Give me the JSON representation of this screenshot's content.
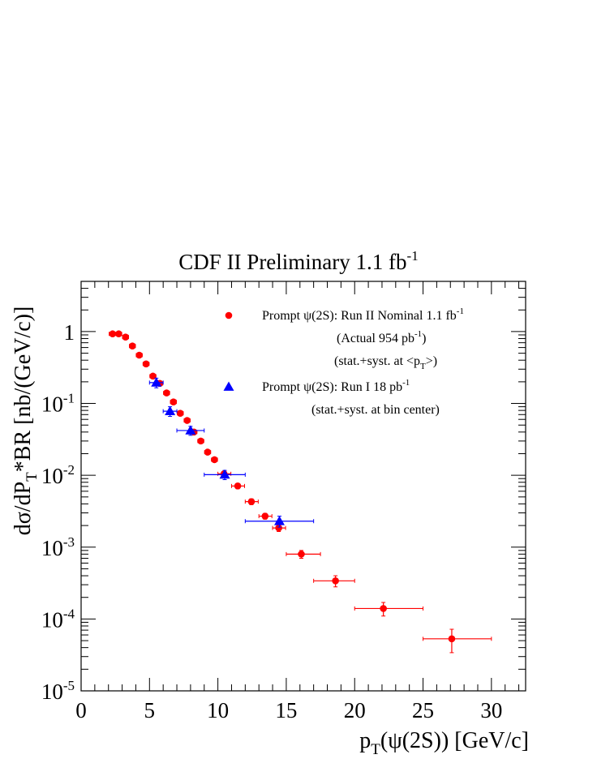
{
  "chart_data": {
    "type": "scatter",
    "title": {
      "main": "CDF II Preliminary 1.1 fb",
      "sup": "-1"
    },
    "xlabel": {
      "parts": [
        "p",
        "T",
        "(ψ(2S)) [GeV/c]"
      ]
    },
    "ylabel": {
      "parts": [
        "dσ/dP",
        "T",
        "*BR [nb/(GeV/c)]"
      ]
    },
    "xlim": [
      0,
      32.5
    ],
    "ylim": [
      1e-05,
      5
    ],
    "yscale": "log",
    "grid": false,
    "x_ticks": [
      0,
      5,
      10,
      15,
      20,
      25,
      30
    ],
    "x_tick_labels": [
      "0",
      "5",
      "10",
      "15",
      "20",
      "25",
      "30"
    ],
    "y_ticks": [
      {
        "value": 1,
        "label": "1",
        "sup": ""
      },
      {
        "value": 0.1,
        "label": "10",
        "sup": "-1"
      },
      {
        "value": 0.01,
        "label": "10",
        "sup": "-2"
      },
      {
        "value": 0.001,
        "label": "10",
        "sup": "-3"
      },
      {
        "value": 0.0001,
        "label": "10",
        "sup": "-4"
      },
      {
        "value": 1e-05,
        "label": "10",
        "sup": "-5"
      }
    ],
    "legend_position": "top-right",
    "series": [
      {
        "name": "Prompt ψ(2S): Run II Nominal 1.1 fb",
        "name_sup": "-1",
        "extra_lines": [
          {
            "text": "(Actual 954 pb",
            "sup": "-1",
            "after": ")"
          },
          {
            "text": "(stat.+syst. at <p",
            "sub": "T",
            "after": ">)"
          }
        ],
        "marker": "circle",
        "color": "#ff0000",
        "points": [
          {
            "x": 2.3,
            "y": 0.93,
            "xerr": [
              0.25,
              0.25
            ],
            "yerr": [
              0.06,
              0.06
            ]
          },
          {
            "x": 2.75,
            "y": 0.93,
            "xerr": [
              0.22,
              0.22
            ],
            "yerr": [
              0.05,
              0.05
            ]
          },
          {
            "x": 3.25,
            "y": 0.84,
            "xerr": [
              0.22,
              0.22
            ],
            "yerr": [
              0.05,
              0.05
            ]
          },
          {
            "x": 3.75,
            "y": 0.63,
            "xerr": [
              0.22,
              0.22
            ],
            "yerr": [
              0.04,
              0.04
            ]
          },
          {
            "x": 4.25,
            "y": 0.47,
            "xerr": [
              0.22,
              0.22
            ],
            "yerr": [
              0.03,
              0.03
            ]
          },
          {
            "x": 4.75,
            "y": 0.355,
            "xerr": [
              0.22,
              0.22
            ],
            "yerr": [
              0.02,
              0.02
            ]
          },
          {
            "x": 5.25,
            "y": 0.24,
            "xerr": [
              0.22,
              0.22
            ],
            "yerr": [
              0.015,
              0.015
            ]
          },
          {
            "x": 5.75,
            "y": 0.19,
            "xerr": [
              0.22,
              0.22
            ],
            "yerr": [
              0.012,
              0.012
            ]
          },
          {
            "x": 6.25,
            "y": 0.14,
            "xerr": [
              0.22,
              0.22
            ],
            "yerr": [
              0.009,
              0.009
            ]
          },
          {
            "x": 6.75,
            "y": 0.105,
            "xerr": [
              0.22,
              0.22
            ],
            "yerr": [
              0.007,
              0.007
            ]
          },
          {
            "x": 7.25,
            "y": 0.073,
            "xerr": [
              0.22,
              0.22
            ],
            "yerr": [
              0.005,
              0.005
            ]
          },
          {
            "x": 7.75,
            "y": 0.058,
            "xerr": [
              0.22,
              0.22
            ],
            "yerr": [
              0.004,
              0.004
            ]
          },
          {
            "x": 8.25,
            "y": 0.04,
            "xerr": [
              0.22,
              0.22
            ],
            "yerr": [
              0.003,
              0.003
            ]
          },
          {
            "x": 8.75,
            "y": 0.03,
            "xerr": [
              0.22,
              0.22
            ],
            "yerr": [
              0.002,
              0.002
            ]
          },
          {
            "x": 9.25,
            "y": 0.021,
            "xerr": [
              0.22,
              0.22
            ],
            "yerr": [
              0.0015,
              0.0015
            ]
          },
          {
            "x": 9.75,
            "y": 0.0165,
            "xerr": [
              0.22,
              0.22
            ],
            "yerr": [
              0.0012,
              0.0012
            ]
          },
          {
            "x": 10.45,
            "y": 0.0105,
            "xerr": [
              0.45,
              0.5
            ],
            "yerr": [
              0.0008,
              0.0008
            ]
          },
          {
            "x": 11.45,
            "y": 0.0071,
            "xerr": [
              0.45,
              0.5
            ],
            "yerr": [
              0.0006,
              0.0006
            ]
          },
          {
            "x": 12.45,
            "y": 0.0043,
            "xerr": [
              0.45,
              0.5
            ],
            "yerr": [
              0.0004,
              0.0004
            ]
          },
          {
            "x": 13.45,
            "y": 0.0027,
            "xerr": [
              0.45,
              0.5
            ],
            "yerr": [
              0.00025,
              0.00025
            ]
          },
          {
            "x": 14.45,
            "y": 0.00185,
            "xerr": [
              0.45,
              0.5
            ],
            "yerr": [
              0.0002,
              0.0002
            ]
          },
          {
            "x": 16.1,
            "y": 0.0008,
            "xerr": [
              1.1,
              1.4
            ],
            "yerr": [
              0.0001,
              0.0001
            ]
          },
          {
            "x": 18.6,
            "y": 0.00034,
            "xerr": [
              1.6,
              1.4
            ],
            "yerr": [
              6e-05,
              6e-05
            ]
          },
          {
            "x": 22.1,
            "y": 0.00014,
            "xerr": [
              2.1,
              2.9
            ],
            "yerr": [
              3e-05,
              3e-05
            ]
          },
          {
            "x": 27.1,
            "y": 5.3e-05,
            "xerr": [
              2.1,
              2.9
            ],
            "yerr": [
              1.9e-05,
              1.9e-05
            ]
          }
        ]
      },
      {
        "name": "Prompt ψ(2S): Run I 18 pb",
        "name_sup": "-1",
        "extra_lines": [
          {
            "text": "(stat.+syst. at bin center)"
          }
        ],
        "marker": "triangle",
        "color": "#0000ff",
        "points": [
          {
            "x": 5.5,
            "y": 0.195,
            "xerr": [
              0.5,
              0.5
            ],
            "yerr": [
              0.03,
              0.03
            ]
          },
          {
            "x": 6.5,
            "y": 0.078,
            "xerr": [
              0.5,
              0.5
            ],
            "yerr": [
              0.012,
              0.012
            ]
          },
          {
            "x": 8.0,
            "y": 0.042,
            "xerr": [
              1.0,
              1.0
            ],
            "yerr": [
              0.006,
              0.006
            ]
          },
          {
            "x": 10.5,
            "y": 0.0102,
            "xerr": [
              1.5,
              1.5
            ],
            "yerr": [
              0.0015,
              0.0015
            ]
          },
          {
            "x": 14.5,
            "y": 0.0023,
            "xerr": [
              2.5,
              2.5
            ],
            "yerr": [
              0.0004,
              0.0004
            ]
          }
        ]
      }
    ]
  }
}
